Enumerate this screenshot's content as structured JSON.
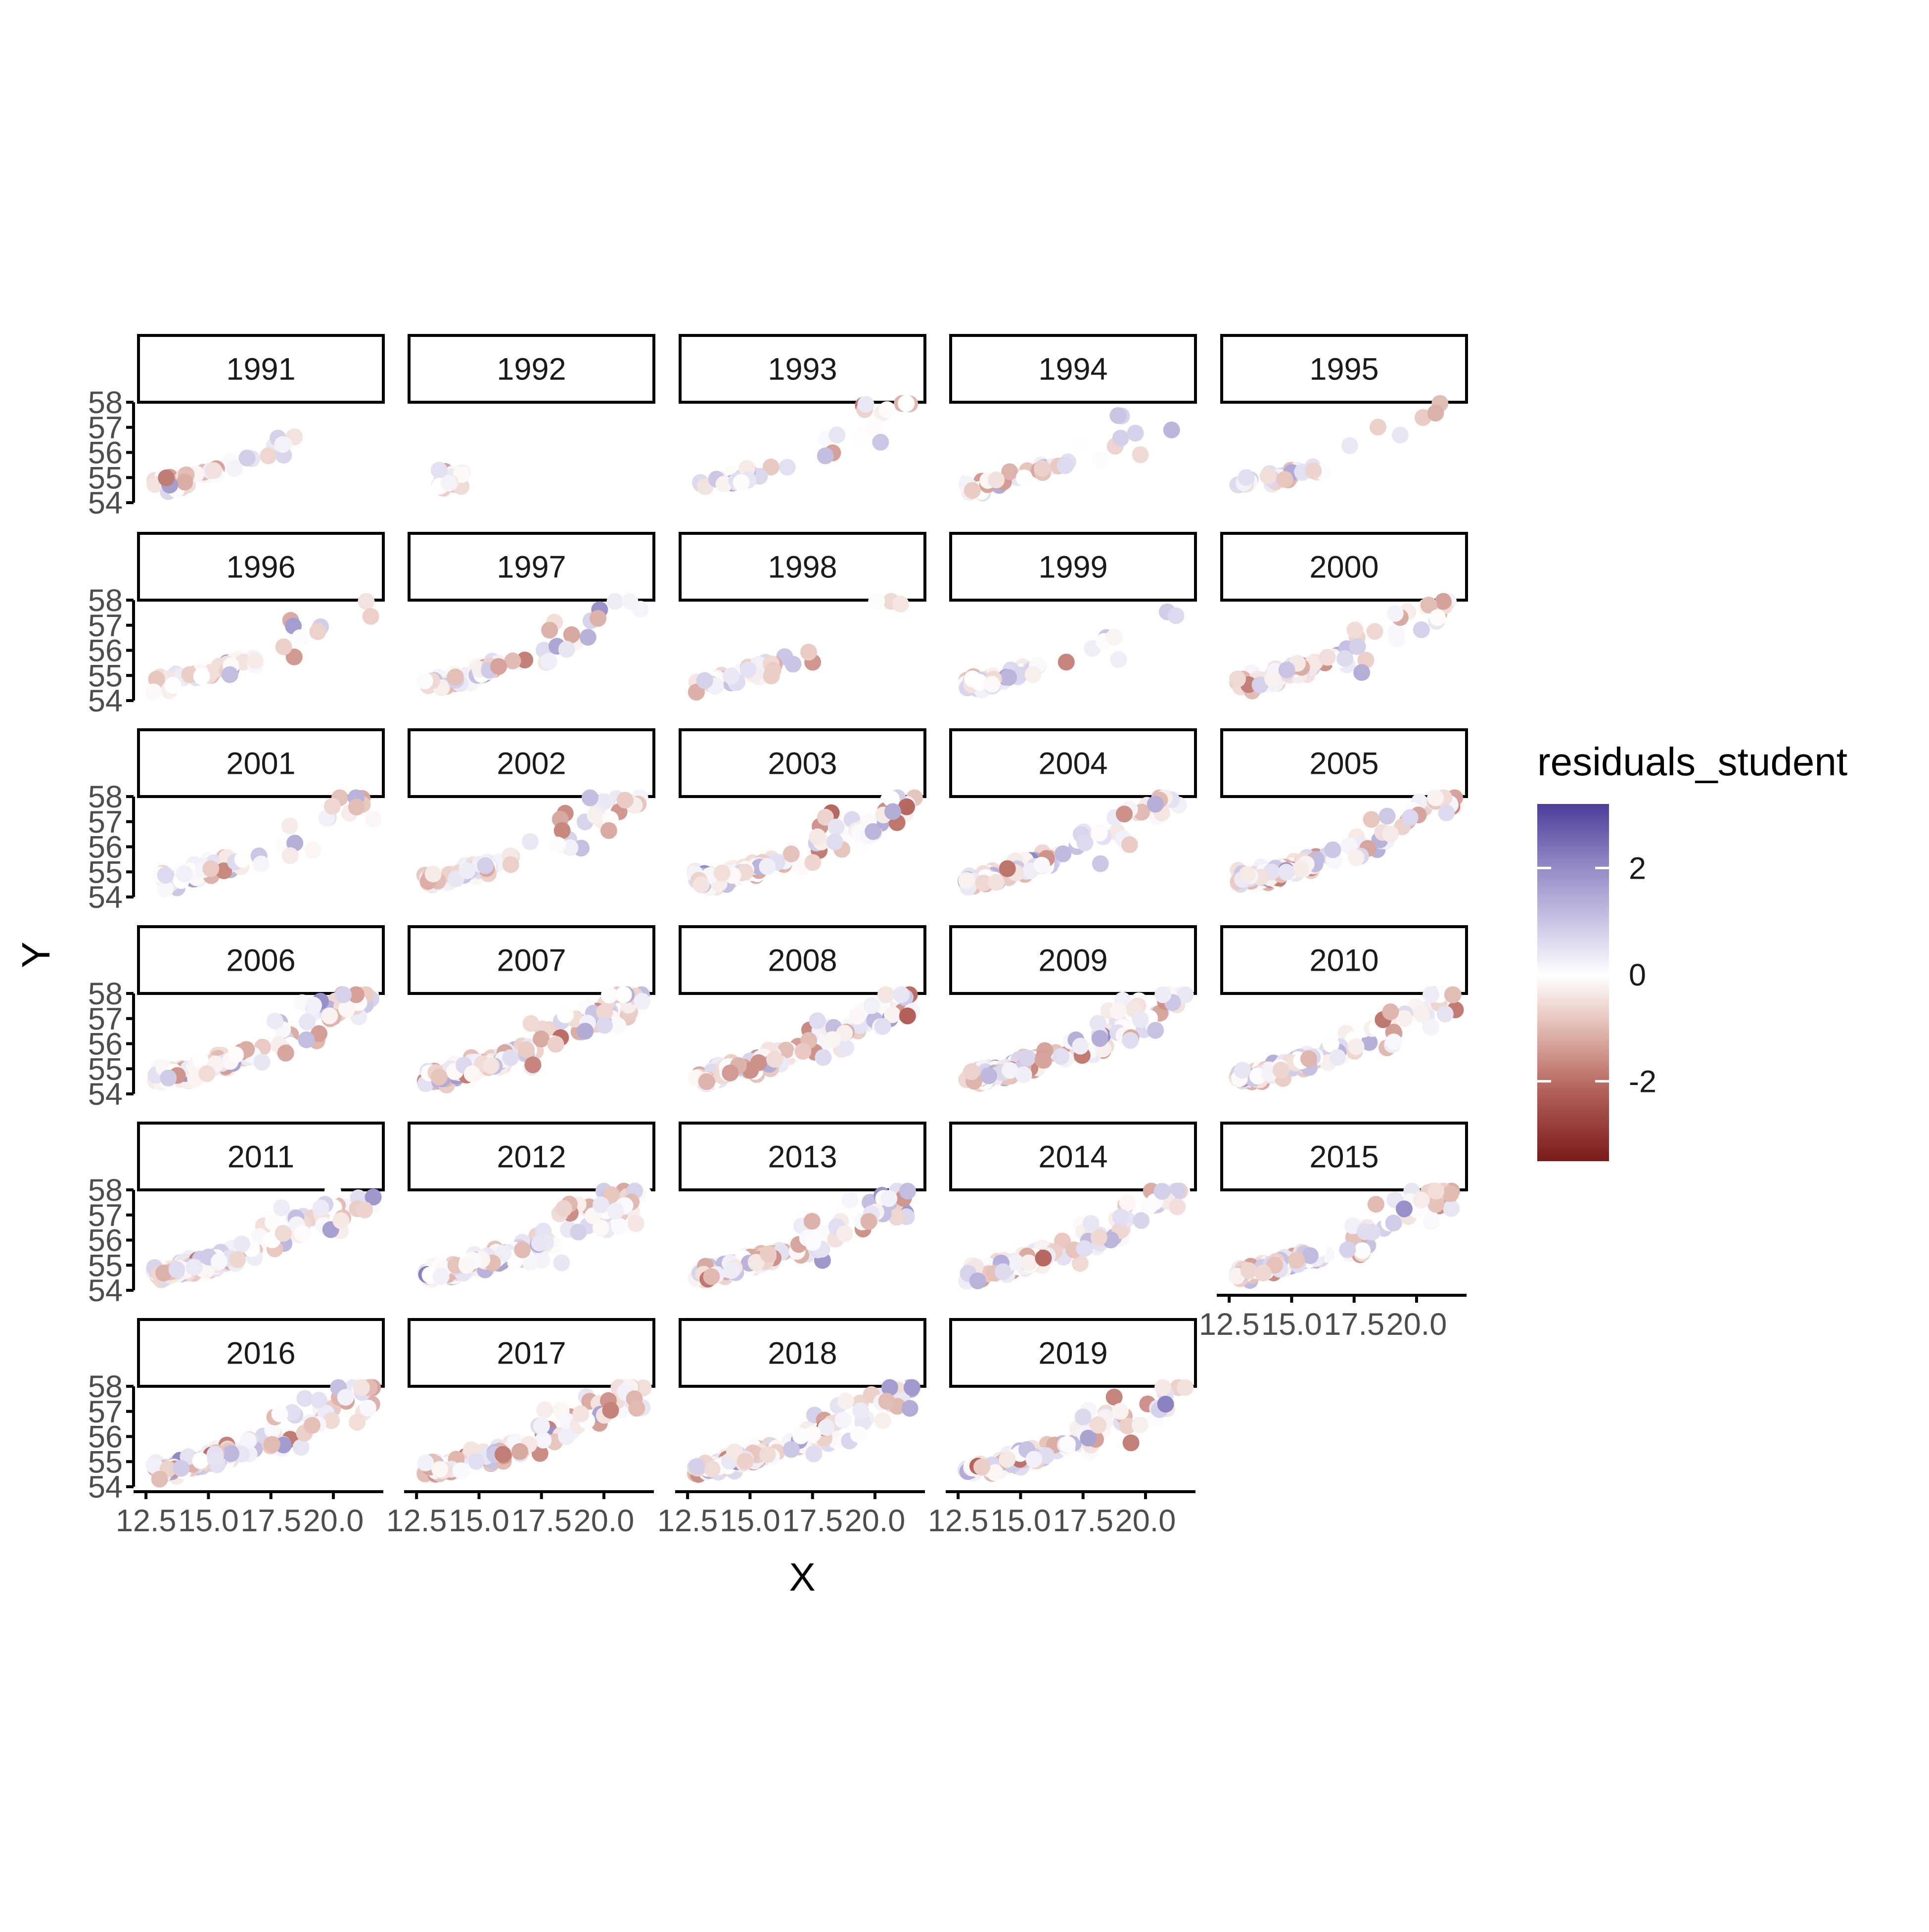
{
  "chart_data": {
    "type": "scatter",
    "facet_by": "year",
    "facet_layout": {
      "columns": 5,
      "rows": 6
    },
    "xlabel": "X",
    "ylabel": "Y",
    "xlim": [
      12.2,
      22.0
    ],
    "ylim": [
      54.0,
      58.0
    ],
    "x_ticks": [
      12.5,
      15.0,
      17.5,
      20.0
    ],
    "x_tick_labels": [
      "12.5",
      "15.0",
      "17.5",
      "20.0"
    ],
    "y_ticks": [
      54,
      55,
      56,
      57,
      58
    ],
    "y_tick_labels": [
      "54",
      "55",
      "56",
      "57",
      "58"
    ],
    "grid": false,
    "color_scale": {
      "variable": "residuals_student",
      "title": "residuals_student",
      "limits": [
        -3.5,
        3.2
      ],
      "breaks": [
        2,
        0,
        -2
      ],
      "break_labels": [
        "2",
        "0",
        "-2"
      ],
      "colors": {
        "high": "#4b3d9a",
        "mid": "#ffffff",
        "low": "#7a1a1a"
      }
    },
    "legend_position": "right",
    "facets": [
      {
        "label": "1991",
        "n": 35
      },
      {
        "label": "1992",
        "n": 18
      },
      {
        "label": "1993",
        "n": 40
      },
      {
        "label": "1994",
        "n": 42
      },
      {
        "label": "1995",
        "n": 38
      },
      {
        "label": "1996",
        "n": 48
      },
      {
        "label": "1997",
        "n": 70
      },
      {
        "label": "1998",
        "n": 45
      },
      {
        "label": "1999",
        "n": 45
      },
      {
        "label": "2000",
        "n": 85
      },
      {
        "label": "2001",
        "n": 60
      },
      {
        "label": "2002",
        "n": 85
      },
      {
        "label": "2003",
        "n": 120
      },
      {
        "label": "2004",
        "n": 110
      },
      {
        "label": "2005",
        "n": 150
      },
      {
        "label": "2006",
        "n": 140
      },
      {
        "label": "2007",
        "n": 170
      },
      {
        "label": "2008",
        "n": 150
      },
      {
        "label": "2009",
        "n": 150
      },
      {
        "label": "2010",
        "n": 150
      },
      {
        "label": "2011",
        "n": 160
      },
      {
        "label": "2012",
        "n": 160
      },
      {
        "label": "2013",
        "n": 140
      },
      {
        "label": "2014",
        "n": 140
      },
      {
        "label": "2015",
        "n": 120
      },
      {
        "label": "2016",
        "n": 150
      },
      {
        "label": "2017",
        "n": 150
      },
      {
        "label": "2018",
        "n": 140
      },
      {
        "label": "2019",
        "n": 140
      }
    ]
  }
}
